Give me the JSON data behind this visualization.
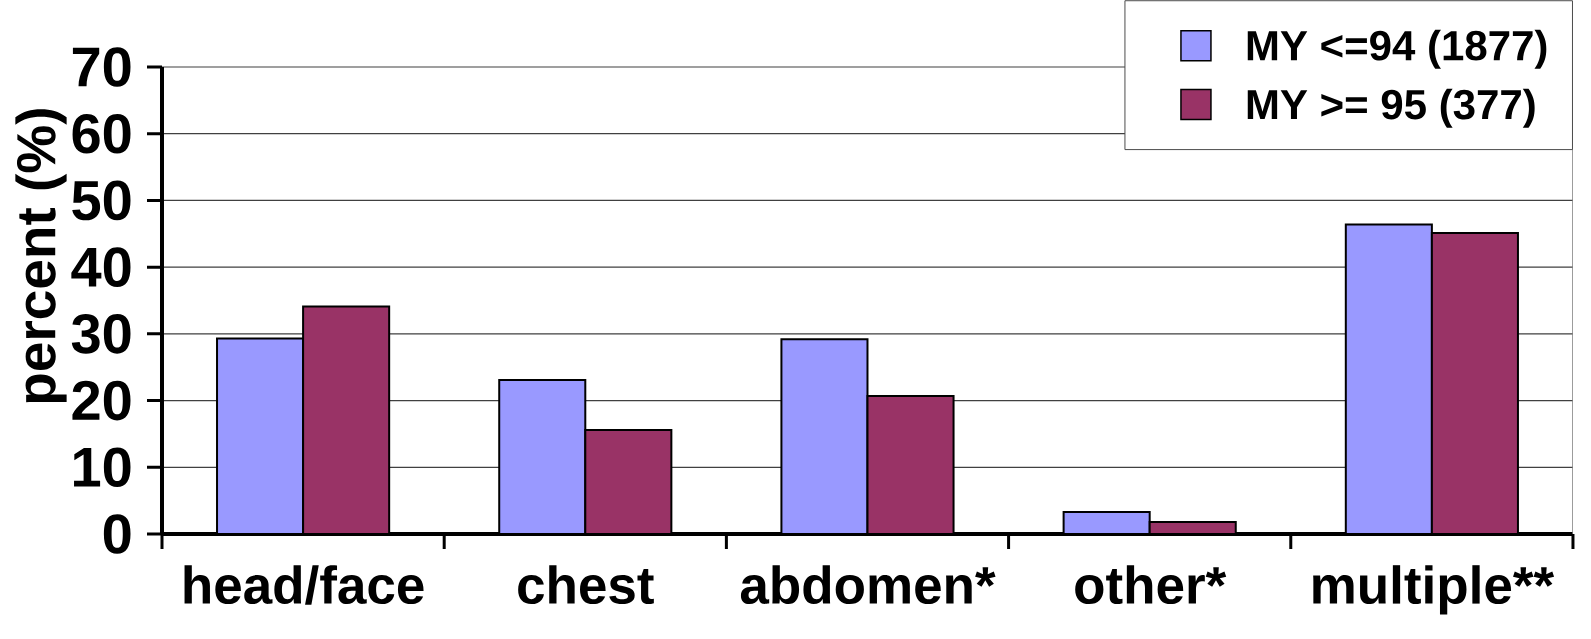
{
  "chart_data": {
    "type": "bar",
    "ylabel": "percent (%)",
    "categories": [
      "head/face",
      "chest",
      "abdomen*",
      "other*",
      "multiple**"
    ],
    "series": [
      {
        "name": "MY <=94 (1877)",
        "color": "#9999ff",
        "values": [
          29.3,
          23.1,
          29.2,
          3.3,
          46.4
        ]
      },
      {
        "name": "MY >= 95 (377)",
        "color": "#993366",
        "values": [
          34.1,
          15.6,
          20.7,
          1.8,
          45.1
        ]
      }
    ],
    "ylim": [
      0,
      70
    ],
    "yticks": [
      0,
      10,
      20,
      30,
      40,
      50,
      60,
      70
    ],
    "grid": "y",
    "legend": "top right"
  }
}
